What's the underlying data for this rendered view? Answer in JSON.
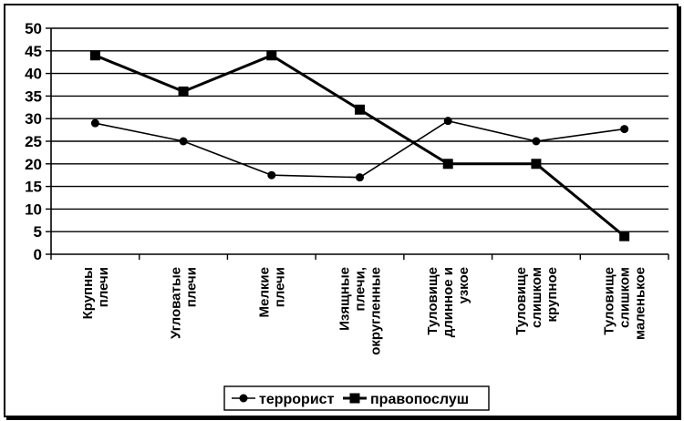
{
  "chart_data": {
    "type": "line",
    "categories": [
      [
        "Крупны",
        "плечи"
      ],
      [
        "Угловатые",
        "плечи"
      ],
      [
        "Мелкие",
        "плечи"
      ],
      [
        "Изящные",
        "плечи,",
        "округленные"
      ],
      [
        "Туловище",
        "длинное и",
        "узкое"
      ],
      [
        "Туловище",
        "слишком",
        "крупное"
      ],
      [
        "Туловище",
        "слишком",
        "маленькое"
      ]
    ],
    "series": [
      {
        "name": "террорист",
        "marker": "circle",
        "values": [
          29,
          25,
          17.5,
          17,
          29.5,
          25,
          27.7
        ]
      },
      {
        "name": "правопослуш",
        "marker": "square",
        "values": [
          44,
          36,
          44,
          32,
          20,
          20,
          4
        ]
      }
    ],
    "ylim": [
      0,
      50
    ],
    "yticks": [
      "0",
      "5",
      "10",
      "15",
      "20",
      "25",
      "30",
      "35",
      "40",
      "45",
      "50"
    ],
    "grid": true,
    "legend": "bottom",
    "colors": {
      "line": "#000000",
      "grid": "#000000"
    }
  }
}
